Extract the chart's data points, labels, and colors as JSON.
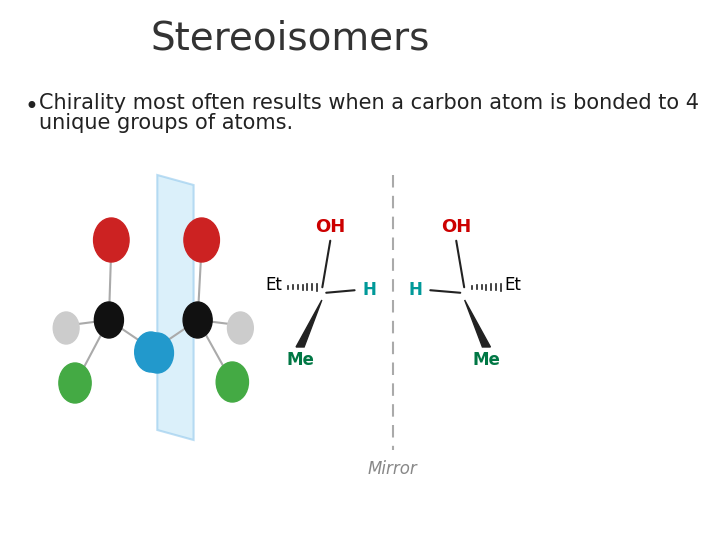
{
  "title": "Stereoisomers",
  "title_fontsize": 28,
  "title_color": "#333333",
  "bullet_text_line1": "Chirality most often results when a carbon atom is bonded to 4",
  "bullet_text_line2": "unique groups of atoms.",
  "bullet_fontsize": 15,
  "bullet_color": "#222222",
  "background_color": "#ffffff",
  "oh_color": "#cc0000",
  "et_color": "#000000",
  "me_color": "#007744",
  "h_color": "#009999",
  "mirror_label_color": "#888888",
  "dashed_line_color": "#aaaaaa",
  "bond_color": "#222222"
}
